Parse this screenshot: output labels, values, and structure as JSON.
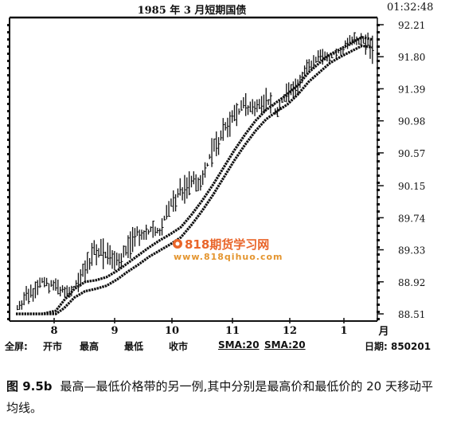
{
  "header": {
    "title": "1985 年 3 月短期国债",
    "time": "01:32:48"
  },
  "footer": {
    "fullscreen": "全屏:",
    "open": "开市",
    "high": "最高",
    "low": "最低",
    "close": "收市",
    "sma1": "SMA:20",
    "sma2": "SMA:20",
    "date": "日期: 850201"
  },
  "watermark": {
    "name": "818期货学习网",
    "url": "www.818qihuo.com"
  },
  "caption": {
    "figure": "图 9.5b",
    "text": "最高—最低价格带的另一例,其中分别是最高价和最低价的 20 天移动平均线。"
  },
  "chart_data": {
    "type": "line",
    "title": "1985 年 3 月短期国债",
    "y_ticks": [
      "92.21",
      "91.80",
      "91.39",
      "90.98",
      "90.57",
      "90.15",
      "89.74",
      "89.33",
      "88.92",
      "88.51"
    ],
    "ylim": [
      88.51,
      92.21
    ],
    "x_ticks": [
      "8",
      "9",
      "10",
      "11",
      "12",
      "1"
    ],
    "x_unit": "月",
    "series": [
      {
        "name": "SMA:20",
        "x": [
          0,
          5,
          10,
          15,
          18,
          22,
          26,
          30,
          34,
          38,
          42,
          46,
          50,
          54,
          58,
          62,
          66,
          70,
          74,
          78,
          82,
          86,
          90,
          94,
          98,
          102,
          106,
          110,
          114,
          118,
          122,
          126,
          130,
          134
        ],
        "values": [
          88.51,
          88.51,
          88.51,
          88.55,
          88.68,
          88.83,
          88.92,
          88.94,
          88.98,
          89.06,
          89.16,
          89.26,
          89.36,
          89.45,
          89.53,
          89.62,
          89.78,
          89.96,
          90.16,
          90.38,
          90.6,
          90.8,
          90.98,
          91.12,
          91.22,
          91.32,
          91.44,
          91.6,
          91.72,
          91.83,
          91.9,
          91.98,
          92.05,
          92.02
        ]
      },
      {
        "name": "SMA:20",
        "x": [
          0,
          5,
          10,
          15,
          18,
          22,
          26,
          30,
          34,
          38,
          42,
          46,
          50,
          54,
          58,
          62,
          66,
          70,
          74,
          78,
          82,
          86,
          90,
          94,
          98,
          102,
          106,
          110,
          114,
          118,
          122,
          126,
          130,
          134
        ],
        "values": [
          88.51,
          88.51,
          88.51,
          88.51,
          88.58,
          88.72,
          88.8,
          88.83,
          88.87,
          88.95,
          89.05,
          89.14,
          89.24,
          89.32,
          89.4,
          89.49,
          89.65,
          89.83,
          90.03,
          90.25,
          90.47,
          90.67,
          90.85,
          91.0,
          91.1,
          91.19,
          91.32,
          91.48,
          91.6,
          91.72,
          91.8,
          91.87,
          91.94,
          91.92
        ]
      }
    ],
    "price_bars": {
      "x": [
        0,
        5,
        10,
        15,
        18,
        22,
        26,
        30,
        34,
        38,
        42,
        46,
        50,
        54,
        58,
        62,
        66,
        70,
        74,
        78,
        82,
        86,
        90,
        94,
        98,
        102,
        106,
        110,
        114,
        118,
        122,
        126,
        130,
        134
      ],
      "high": [
        88.62,
        88.95,
        89.02,
        88.98,
        88.9,
        88.98,
        89.25,
        89.55,
        89.45,
        89.3,
        89.52,
        89.75,
        89.72,
        89.7,
        90.05,
        90.3,
        90.35,
        90.35,
        90.85,
        91.05,
        91.25,
        91.35,
        91.25,
        91.45,
        91.2,
        91.5,
        91.55,
        91.85,
        91.9,
        91.9,
        91.95,
        92.15,
        92.1,
        92.12
      ],
      "low": [
        88.52,
        88.6,
        88.8,
        88.72,
        88.65,
        88.72,
        88.9,
        89.1,
        89.05,
        89.05,
        89.15,
        89.35,
        89.4,
        89.45,
        89.7,
        89.85,
        90.0,
        90.1,
        90.4,
        90.6,
        90.85,
        91.0,
        91.0,
        91.1,
        90.98,
        91.2,
        91.3,
        91.55,
        91.65,
        91.7,
        91.78,
        91.95,
        91.9,
        91.68
      ]
    }
  }
}
